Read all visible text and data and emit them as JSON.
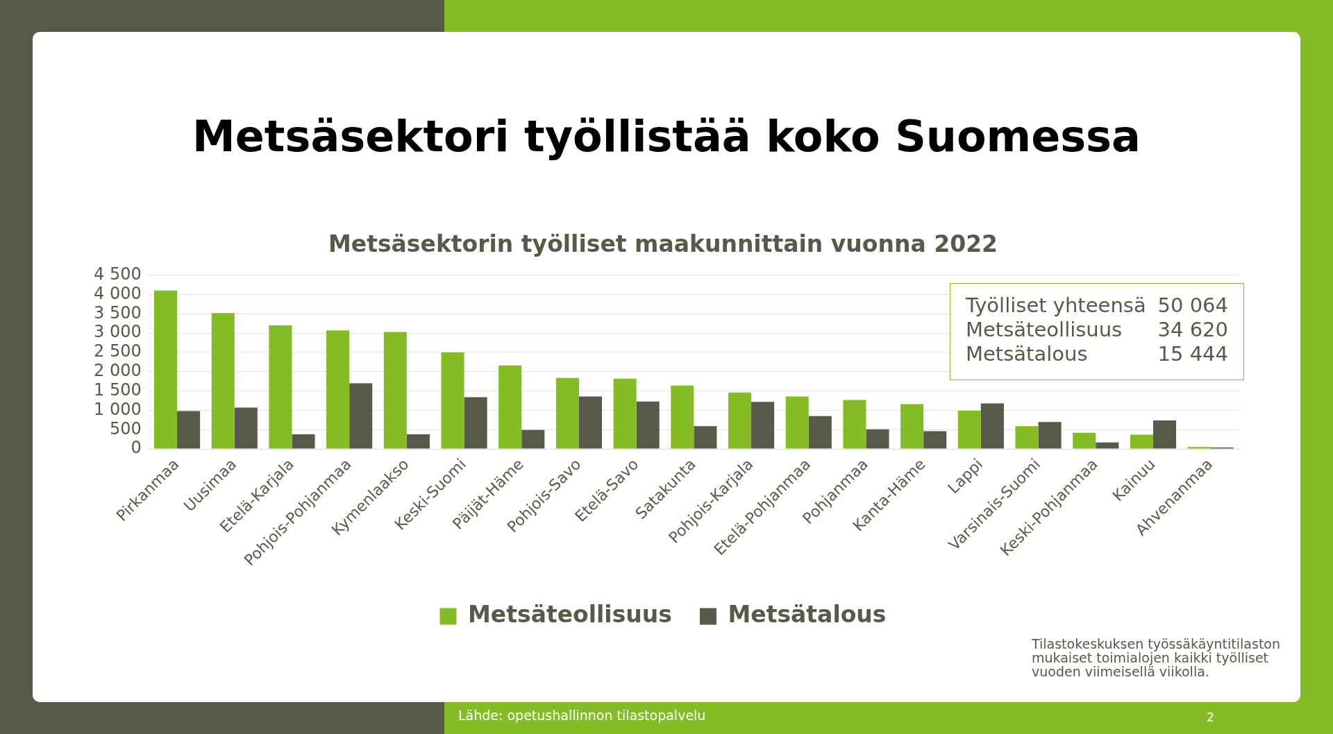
{
  "chart_data": {
    "type": "bar",
    "title": "Metsäsektori työllistää koko Suomessa",
    "subtitle": "Metsäsektorin työlliset maakunnittain vuonna 2022",
    "categories": [
      "Pirkanmaa",
      "Uusimaa",
      "Etelä-Karjala",
      "Pohjois-Pohjanmaa",
      "Kymenlaakso",
      "Keski-Suomi",
      "Päijät-Häme",
      "Pohjois-Savo",
      "Etelä-Savo",
      "Satakunta",
      "Pohjois-Karjala",
      "Etelä-Pohjanmaa",
      "Pohjanmaa",
      "Kanta-Häme",
      "Lappi",
      "Varsinais-Suomi",
      "Keski-Pohjanmaa",
      "Kainuu",
      "Ahvenanmaa"
    ],
    "series": [
      {
        "name": "Metsäteollisuus",
        "color": "#84bb27",
        "values": [
          4100,
          3520,
          3200,
          3070,
          3030,
          2500,
          2160,
          1840,
          1820,
          1640,
          1460,
          1360,
          1270,
          1160,
          990,
          590,
          420,
          370,
          50
        ]
      },
      {
        "name": "Metsätalous",
        "color": "#59594a",
        "values": [
          980,
          1070,
          380,
          1700,
          380,
          1340,
          490,
          1360,
          1230,
          590,
          1220,
          850,
          510,
          460,
          1180,
          700,
          170,
          740,
          40
        ]
      }
    ],
    "ylim": [
      0,
      4500
    ],
    "yticks": [
      0,
      500,
      {
        "value": 1000,
        "label": "1 000"
      },
      {
        "value": 1500,
        "label": "1 500"
      },
      {
        "value": 2000,
        "label": "2 000"
      },
      {
        "value": 2500,
        "label": "2 500"
      },
      {
        "value": 3000,
        "label": "3 000"
      },
      {
        "value": 3500,
        "label": "3 500"
      },
      {
        "value": 4000,
        "label": "4 000"
      },
      {
        "value": 4500,
        "label": "4 500"
      }
    ],
    "grid": "y",
    "legend": "bottom",
    "annotations": [
      "Työlliset yhteensä 50 064",
      "Metsäteollisuus 34 620",
      "Metsätalous 15 444",
      "Tilastokeskuksen työssäkäyntitilaston mukaiset toimialojen kaikki työlliset vuoden viimeisellä viikolla.",
      "Lähde: opetushallinnon tilastopalvelu",
      "2"
    ]
  }
}
